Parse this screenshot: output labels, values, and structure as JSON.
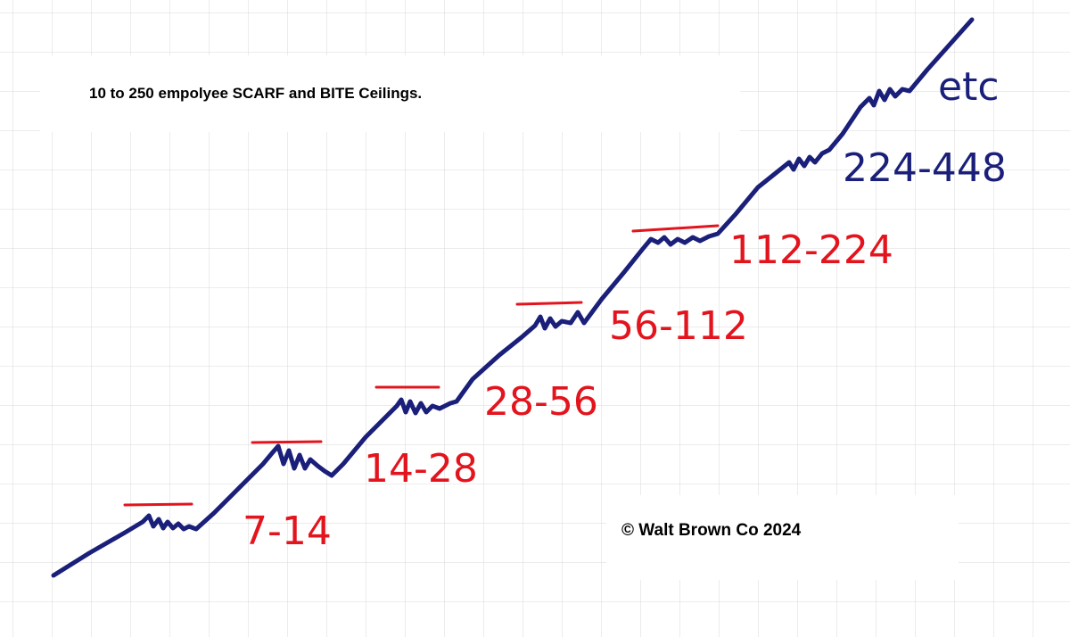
{
  "header": {
    "title": "10 to 250 empolyee SCARF and BITE Ceilings."
  },
  "ranges": [
    "7-14",
    "14-28",
    "28-56",
    "56-112",
    "112-224",
    "224-448",
    "etc"
  ],
  "footer": {
    "copyright": "© Walt Brown Co 2024"
  }
}
